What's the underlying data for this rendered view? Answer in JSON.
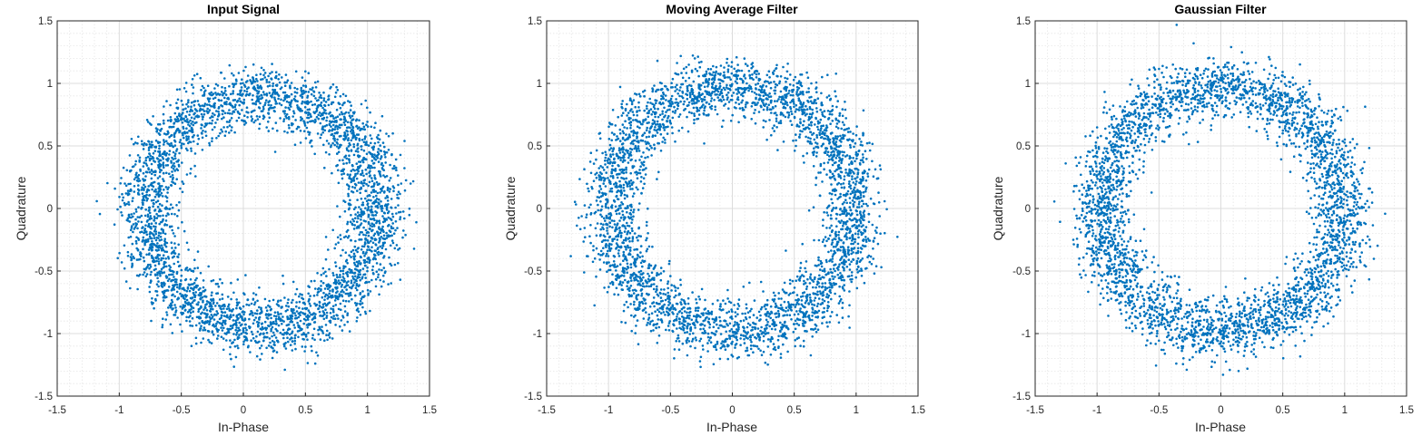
{
  "chart_data": [
    {
      "type": "scatter",
      "title": "Input Signal",
      "xlabel": "In-Phase",
      "ylabel": "Quadrature",
      "xlim": [
        -1.5,
        1.5
      ],
      "ylim": [
        -1.5,
        1.5
      ],
      "xticks": [
        "-1.5",
        "-1",
        "-0.5",
        "0",
        "0.5",
        "1",
        "1.5"
      ],
      "yticks": [
        "-1.5",
        "-1",
        "-0.5",
        "0",
        "0.5",
        "1",
        "1.5"
      ],
      "grid": true,
      "minor_grid": true,
      "marker_color": "#0072BD",
      "ring": {
        "center": [
          0.15,
          -0.02
        ],
        "radius": 0.93,
        "spread": 0.12,
        "points": 3500
      }
    },
    {
      "type": "scatter",
      "title": "Moving Average Filter",
      "xlabel": "In-Phase",
      "ylabel": "Quadrature",
      "xlim": [
        -1.5,
        1.5
      ],
      "ylim": [
        -1.5,
        1.5
      ],
      "xticks": [
        "-1.5",
        "-1",
        "-0.5",
        "0",
        "0.5",
        "1",
        "1.5"
      ],
      "yticks": [
        "-1.5",
        "-1",
        "-0.5",
        "0",
        "0.5",
        "1",
        "1.5"
      ],
      "grid": true,
      "minor_grid": true,
      "marker_color": "#0072BD",
      "ring": {
        "center": [
          0.0,
          0.0
        ],
        "radius": 0.98,
        "spread": 0.12,
        "points": 3500
      }
    },
    {
      "type": "scatter",
      "title": "Gaussian Filter",
      "xlabel": "In-Phase",
      "ylabel": "Quadrature",
      "xlim": [
        -1.5,
        1.5
      ],
      "ylim": [
        -1.5,
        1.5
      ],
      "xticks": [
        "-1.5",
        "-1",
        "-0.5",
        "0",
        "0.5",
        "1",
        "1.5"
      ],
      "yticks": [
        "-1.5",
        "-1",
        "-0.5",
        "0",
        "0.5",
        "1",
        "1.5"
      ],
      "grid": true,
      "minor_grid": true,
      "marker_color": "#0072BD",
      "ring": {
        "center": [
          0.0,
          0.0
        ],
        "radius": 0.98,
        "spread": 0.12,
        "points": 3500
      }
    }
  ]
}
